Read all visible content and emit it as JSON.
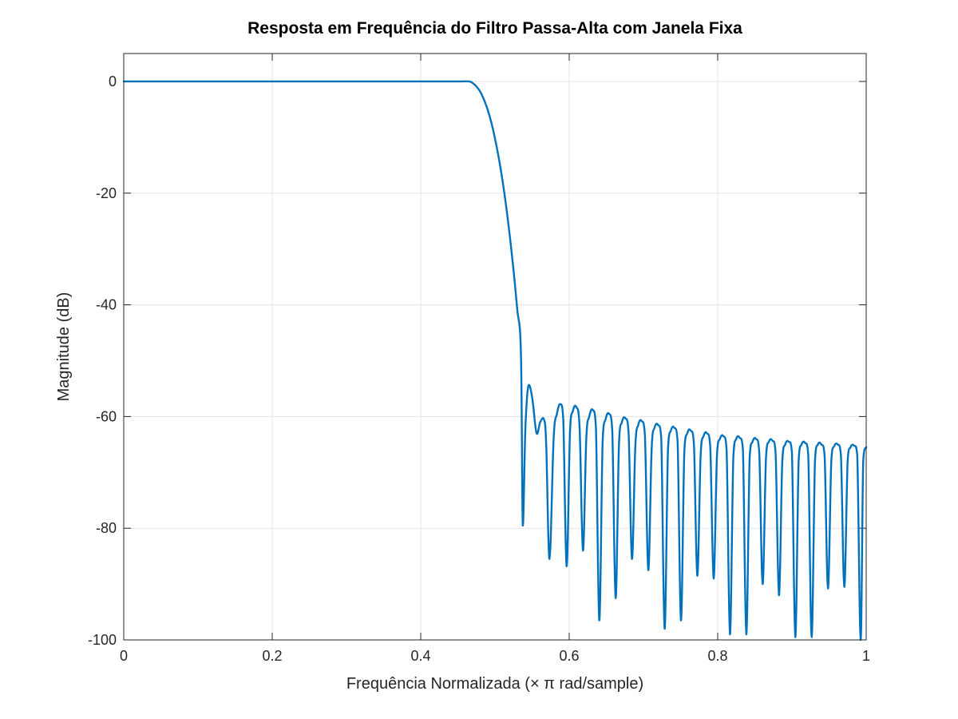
{
  "chart_data": {
    "type": "line",
    "title": "Resposta em Frequência do Filtro Passa-Alta com Janela Fixa",
    "xlabel": "Frequência Normalizada (× π rad/sample)",
    "ylabel": "Magnitude (dB)",
    "xlim": [
      0,
      1
    ],
    "ylim": [
      -100,
      5
    ],
    "xticks": [
      0,
      0.2,
      0.4,
      0.6,
      0.8,
      1
    ],
    "xtick_labels": [
      "0",
      "0.2",
      "0.4",
      "0.6",
      "0.8",
      "1"
    ],
    "yticks": [
      0,
      -20,
      -40,
      -60,
      -80,
      -100
    ],
    "ytick_labels": [
      "0",
      "-20",
      "-40",
      "-60",
      "-80",
      "-100"
    ],
    "grid": true,
    "line_color": "#0072bd",
    "series": [
      {
        "x": [
          0,
          0.1,
          0.2,
          0.3,
          0.4,
          0.45,
          0.465,
          0.47,
          0.475,
          0.48,
          0.485,
          0.49,
          0.495,
          0.5,
          0.505,
          0.51,
          0.515,
          0.52,
          0.525,
          0.53,
          0.535,
          0.5375,
          0.541,
          0.545,
          0.55,
          0.556,
          0.561,
          0.566,
          0.569,
          0.5735,
          0.579,
          0.5835,
          0.588,
          0.592,
          0.5965,
          0.601,
          0.605,
          0.6095,
          0.614,
          0.6185,
          0.623,
          0.627,
          0.6315,
          0.636,
          0.6405,
          0.645,
          0.649,
          0.6535,
          0.658,
          0.6625,
          0.667,
          0.671,
          0.6755,
          0.68,
          0.6845,
          0.689,
          0.693,
          0.6975,
          0.702,
          0.7065,
          0.711,
          0.715,
          0.7195,
          0.724,
          0.7285,
          0.733,
          0.737,
          0.7415,
          0.746,
          0.7505,
          0.755,
          0.759,
          0.7635,
          0.768,
          0.7725,
          0.777,
          0.781,
          0.7855,
          0.79,
          0.7945,
          0.799,
          0.803,
          0.8075,
          0.812,
          0.8165,
          0.821,
          0.825,
          0.8295,
          0.834,
          0.8385,
          0.843,
          0.847,
          0.8515,
          0.856,
          0.8605,
          0.865,
          0.869,
          0.8735,
          0.878,
          0.8825,
          0.887,
          0.891,
          0.8955,
          0.9,
          0.9045,
          0.909,
          0.913,
          0.9175,
          0.922,
          0.9265,
          0.931,
          0.935,
          0.9395,
          0.944,
          0.9485,
          0.953,
          0.957,
          0.9615,
          0.966,
          0.9705,
          0.975,
          0.979,
          0.9835,
          0.988,
          0.9925,
          0.996,
          1
        ],
        "y": [
          0,
          0,
          0,
          0,
          0,
          0,
          0,
          -0.3,
          -0.9,
          -1.8,
          -3.2,
          -5.0,
          -7.3,
          -10.2,
          -13.6,
          -17.6,
          -22.3,
          -27.7,
          -33.8,
          -40.8,
          -48.8,
          -79.5,
          -62.0,
          -54.5,
          -56.5,
          -63.0,
          -61.0,
          -60.5,
          -65.0,
          -85.5,
          -64.0,
          -59.5,
          -57.8,
          -60.5,
          -86.8,
          -63.0,
          -59.0,
          -58.3,
          -62.0,
          -84.0,
          -64.0,
          -60.0,
          -58.8,
          -62.0,
          -96.5,
          -64.5,
          -60.5,
          -59.5,
          -62.5,
          -92.5,
          -65.0,
          -61.0,
          -60.3,
          -63.0,
          -85.5,
          -65.5,
          -61.5,
          -60.8,
          -63.5,
          -87.5,
          -66.0,
          -62.0,
          -61.5,
          -64.0,
          -98.0,
          -66.0,
          -62.5,
          -62.0,
          -64.5,
          -96.5,
          -66.5,
          -63.0,
          -62.5,
          -65.0,
          -88.5,
          -67.0,
          -63.5,
          -63.0,
          -65.5,
          -89.0,
          -67.0,
          -64.0,
          -63.5,
          -66.0,
          -99.0,
          -67.5,
          -64.0,
          -63.8,
          -66.0,
          -99.0,
          -67.5,
          -64.5,
          -64.0,
          -66.5,
          -90.0,
          -67.5,
          -64.5,
          -64.3,
          -66.5,
          -92.0,
          -68.0,
          -65.0,
          -64.5,
          -66.5,
          -99.5,
          -68.0,
          -65.0,
          -64.7,
          -67.0,
          -99.5,
          -68.0,
          -65.0,
          -65.0,
          -67.0,
          -90.8,
          -68.0,
          -65.3,
          -65.0,
          -67.0,
          -90.5,
          -68.0,
          -65.5,
          -65.2,
          -67.0,
          -100,
          -68.0,
          -65.5
        ]
      }
    ]
  }
}
